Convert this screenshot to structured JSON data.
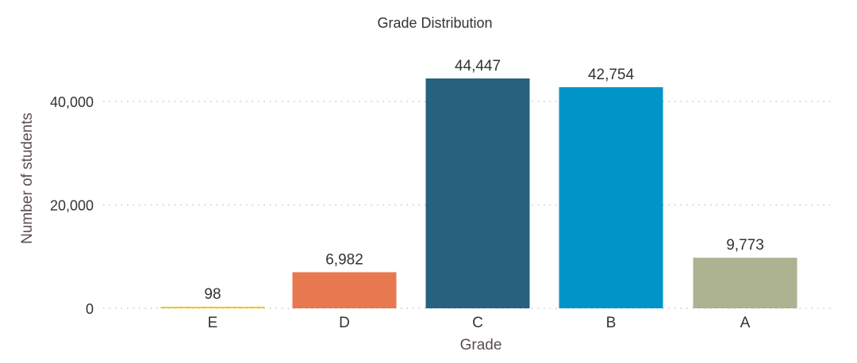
{
  "chart_data": {
    "type": "bar",
    "title": "Grade Distribution",
    "xlabel": "Grade",
    "ylabel": "Number of students",
    "categories": [
      "E",
      "D",
      "C",
      "B",
      "A"
    ],
    "values": [
      98,
      6982,
      44447,
      42754,
      9773
    ],
    "value_labels": [
      "98",
      "6,982",
      "44,447",
      "42,754",
      "9,773"
    ],
    "colors": [
      "#f2c80f",
      "#e8784f",
      "#26627e",
      "#0094c8",
      "#adb290"
    ],
    "ylim": [
      0,
      45000
    ],
    "yticks": [
      0,
      20000,
      40000
    ],
    "ytick_labels": [
      "0",
      "20,000",
      "40,000"
    ],
    "grid": true,
    "legend": "none"
  }
}
